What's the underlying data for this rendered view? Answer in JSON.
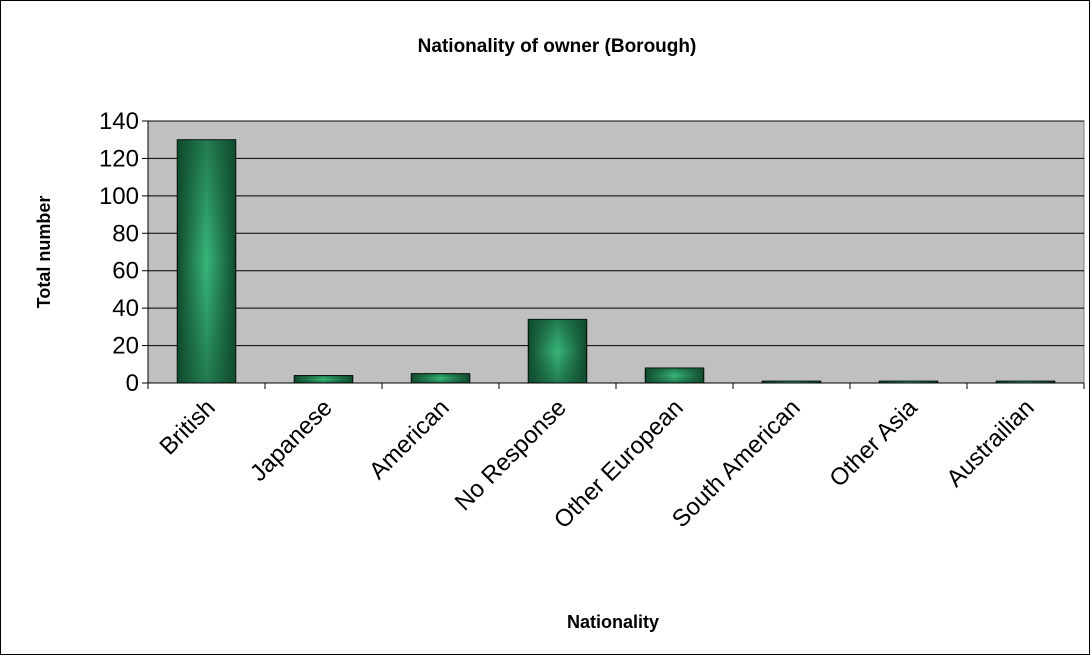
{
  "chart_data": {
    "type": "bar",
    "title": "Nationality of owner (Borough)",
    "xlabel": "Nationality",
    "ylabel": "Total number",
    "categories": [
      "British",
      "Japanese",
      "American",
      "No Response",
      "Other European",
      "South American",
      "Other Asia",
      "Austrailian"
    ],
    "values": [
      130,
      4,
      5,
      34,
      8,
      1,
      1,
      1
    ],
    "ylim": [
      0,
      140
    ],
    "yticks": [
      "0",
      "20",
      "40",
      "60",
      "80",
      "100",
      "120",
      "140"
    ],
    "grid": true,
    "legend": "none",
    "colors": {
      "plot_background": "#c0c0c0",
      "bar_dark": "#0f4a2e",
      "bar_light": "#39b679",
      "gridline": "#000000"
    }
  }
}
